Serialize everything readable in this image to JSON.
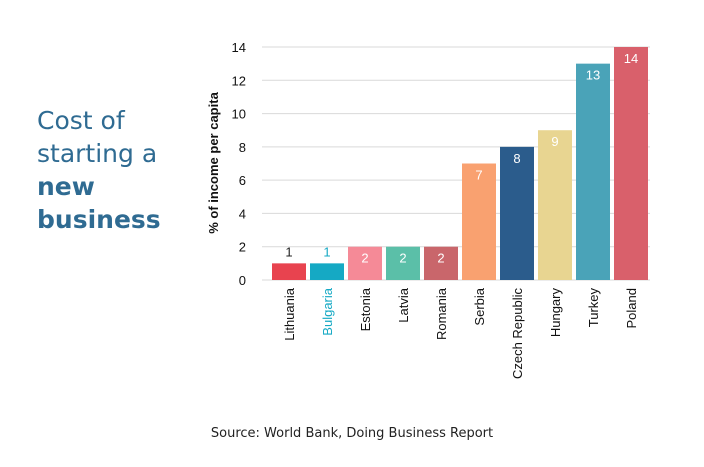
{
  "title": {
    "line1": "Cost of",
    "line2": "starting a",
    "line3": "new",
    "line4": "business"
  },
  "source": "Source: World Bank, Doing Business Report",
  "chart_data": {
    "type": "bar",
    "ylabel": "% of income per capita",
    "xlabel": "",
    "ylim": [
      0,
      14
    ],
    "yticks": [
      0,
      2,
      4,
      6,
      8,
      10,
      12,
      14
    ],
    "grid": true,
    "categories": [
      "Lithuania",
      "Bulgaria",
      "Estonia",
      "Latvia",
      "Romania",
      "Serbia",
      "Czech Republic",
      "Hungary",
      "Turkey",
      "Poland"
    ],
    "values": [
      1,
      1,
      2,
      2,
      2,
      7,
      8,
      9,
      13,
      14
    ],
    "value_labels": [
      "1",
      "1",
      "2",
      "2",
      "2",
      "7",
      "8",
      "9",
      "13",
      "14"
    ],
    "bar_colors": [
      "#e8434f",
      "#15a9c4",
      "#f58a97",
      "#5bbfa8",
      "#c9666b",
      "#f9a170",
      "#2b5c8c",
      "#e8d591",
      "#4aa3b8",
      "#d9606b"
    ],
    "label_colors": [
      "#222222",
      "#15a9c4",
      "#ffffff",
      "#ffffff",
      "#ffffff",
      "#ffffff",
      "#ffffff",
      "#ffffff",
      "#ffffff",
      "#ffffff"
    ],
    "category_label_colors": [
      "#111111",
      "#15a9c4",
      "#111111",
      "#111111",
      "#111111",
      "#111111",
      "#111111",
      "#111111",
      "#111111",
      "#111111"
    ]
  }
}
